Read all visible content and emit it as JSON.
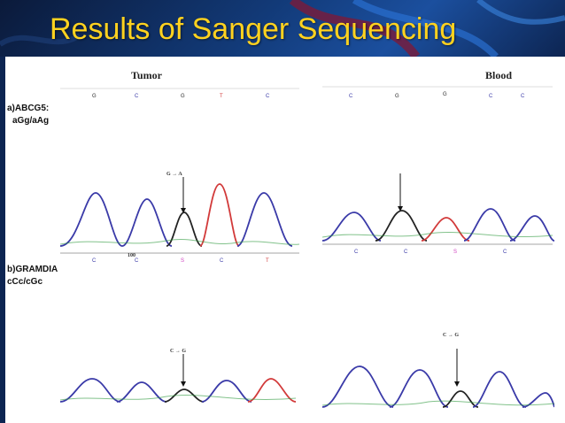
{
  "slide": {
    "title": "Results of Sanger Sequencing"
  },
  "columns": {
    "tumor": "Tumor",
    "blood": "Blood"
  },
  "rows": [
    {
      "label": "a)ABCG5:",
      "sublabel": "aGg/aAg"
    },
    {
      "label": "b)GRAMDIA",
      "sublabel": "cCc/cGc"
    }
  ],
  "annotations": {
    "tumor_abcg5_mutation": "G → A",
    "tumor_gramdia_mutation": "C → G",
    "blood_gramdia_mutation": "C → G",
    "tumor_gramdia_position": "100"
  },
  "base_calls": {
    "tumor_abcg5": [
      "G",
      "C",
      "G",
      "T",
      "C"
    ],
    "blood_abcg5": [
      "C",
      "G",
      "G",
      "C",
      "C"
    ],
    "tumor_gramdia": [
      "C",
      "C",
      "S",
      "C",
      "T"
    ],
    "blood_gramdia": [
      "C",
      "C",
      "S",
      "C"
    ]
  },
  "colors": {
    "title": "#ffd21f",
    "trace_blue": "#3a3aa8",
    "trace_red": "#d23a3a",
    "trace_black": "#222222",
    "trace_green": "#2e9a3e",
    "base_S": "#d040c0"
  }
}
